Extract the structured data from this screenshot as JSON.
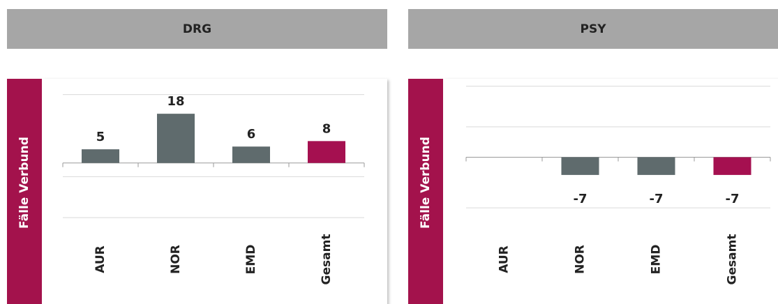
{
  "chart_data": [
    {
      "type": "bar",
      "title": "DRG",
      "y_label": "Fälle Verbund",
      "categories": [
        "AUR",
        "NOR",
        "EMD",
        "Gesamt"
      ],
      "values": [
        5,
        18,
        6,
        8
      ],
      "colors": [
        "#5f6b6d",
        "#5f6b6d",
        "#5f6b6d",
        "#a51050"
      ],
      "ylim": [
        -22,
        29
      ],
      "yticks": [
        -20,
        -5,
        25
      ],
      "grid": true
    },
    {
      "type": "bar",
      "title": "PSY",
      "y_label": "Fälle Verbund",
      "categories": [
        "AUR",
        "NOR",
        "EMD",
        "Gesamt"
      ],
      "values": [
        null,
        -7,
        -7,
        -7
      ],
      "colors": [
        "#5f6b6d",
        "#5f6b6d",
        "#5f6b6d",
        "#a51050"
      ],
      "ylim": [
        -26,
        29
      ],
      "yticks": [
        -20,
        12,
        28
      ],
      "grid": true
    }
  ]
}
